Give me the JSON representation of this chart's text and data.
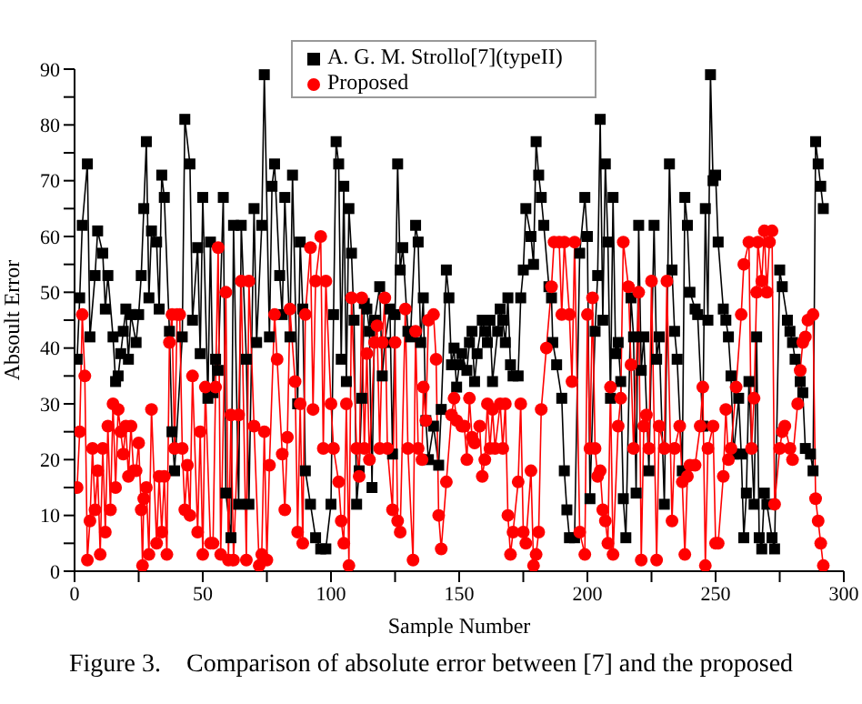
{
  "chart_data": {
    "type": "line",
    "xlabel": "Sample Number",
    "ylabel": "Absoult Error",
    "xlim": [
      0,
      300
    ],
    "xticks": [
      0,
      {
        "value": 25,
        "label": null
      },
      50,
      {
        "value": 75,
        "label": null
      },
      100,
      {
        "value": 125,
        "label": null
      },
      150,
      {
        "value": 175,
        "label": null
      },
      200,
      {
        "value": 225,
        "label": null
      },
      250,
      {
        "value": 275,
        "label": null
      },
      300
    ],
    "ylim": [
      0,
      90
    ],
    "yticks": [
      0,
      {
        "value": 5,
        "label": null
      },
      10,
      {
        "value": 15,
        "label": null
      },
      20,
      {
        "value": 25,
        "label": null
      },
      30,
      {
        "value": 35,
        "label": null
      },
      40,
      {
        "value": 45,
        "label": null
      },
      50,
      {
        "value": 55,
        "label": null
      },
      60,
      {
        "value": 65,
        "label": null
      },
      70,
      {
        "value": 75,
        "label": null
      },
      80,
      {
        "value": 85,
        "label": null
      },
      90
    ],
    "grid": false,
    "legend": "top",
    "annotations": [
      "Figure 3.    Comparison of absolute error between [7] and the proposed"
    ],
    "series": [
      {
        "name": "A. G. M. Strollo[7](typeII)",
        "color": "#000000",
        "marker": "square",
        "x": [
          1,
          2,
          3,
          5,
          6,
          8,
          9,
          11,
          12,
          13,
          15,
          16,
          17,
          18,
          19,
          20,
          21,
          22,
          24,
          25,
          26,
          27,
          28,
          29,
          30,
          32,
          33,
          34,
          35,
          37,
          38,
          39,
          42,
          43,
          45,
          46,
          48,
          49,
          50,
          52,
          53,
          54,
          55,
          56,
          58,
          59,
          61,
          62,
          64,
          65,
          67,
          68,
          70,
          71,
          73,
          74,
          76,
          77,
          78,
          80,
          81,
          82,
          84,
          85,
          87,
          88,
          89,
          90,
          92,
          94,
          96,
          98,
          100,
          101,
          102,
          103,
          104,
          105,
          106,
          107,
          108,
          109,
          110,
          111,
          112,
          113,
          114,
          115,
          116,
          117,
          119,
          120,
          121,
          123,
          124,
          125,
          126,
          127,
          128,
          130,
          131,
          133,
          134,
          135,
          136,
          137,
          138,
          140,
          142,
          143,
          145,
          146,
          147,
          148,
          149,
          150,
          151,
          153,
          154,
          155,
          156,
          157,
          159,
          160,
          161,
          162,
          163,
          165,
          166,
          167,
          168,
          169,
          170,
          171,
          173,
          174,
          175,
          176,
          178,
          179,
          180,
          181,
          182,
          183,
          185,
          186,
          186.5,
          188,
          190,
          191,
          192,
          193,
          195,
          197,
          199,
          200,
          201,
          203,
          204,
          205,
          206,
          207,
          208,
          209,
          210,
          211,
          212,
          213,
          214,
          215,
          217,
          218,
          219,
          220,
          221,
          222,
          224,
          226,
          227,
          228,
          230,
          232,
          233,
          234,
          235,
          237,
          238,
          239,
          240,
          242,
          243,
          245,
          246,
          247,
          248,
          249,
          250,
          251,
          253,
          254,
          255,
          256,
          257,
          259,
          260,
          261,
          262,
          263,
          265,
          266,
          267,
          268,
          269,
          270,
          272,
          273,
          275,
          276,
          278,
          279,
          280,
          281,
          283,
          284,
          285,
          287,
          288,
          289,
          290,
          291,
          292
        ],
        "values": [
          38,
          49,
          62,
          73,
          42,
          53,
          61,
          57,
          47,
          53,
          42,
          34,
          35,
          39,
          43,
          47,
          38,
          46,
          41,
          46,
          53,
          65,
          77,
          49,
          61,
          59,
          47,
          71,
          67,
          43,
          25,
          18,
          42,
          81,
          73,
          45,
          58,
          39,
          67,
          31,
          59,
          32,
          38,
          36,
          67,
          14,
          6,
          62,
          12,
          62,
          38,
          12,
          65,
          41,
          62,
          89,
          42,
          69,
          73,
          53,
          46,
          67,
          42,
          71,
          30,
          59,
          47,
          18,
          12,
          6,
          4,
          4,
          12,
          46,
          77,
          73,
          38,
          69,
          34,
          65,
          57,
          45,
          12,
          18,
          31,
          48,
          47,
          43,
          15,
          45,
          51,
          35,
          41,
          47,
          21,
          46,
          73,
          54,
          58,
          43,
          42,
          62,
          59,
          41,
          49,
          27,
          20,
          26,
          19,
          29,
          54,
          49,
          37,
          40,
          33,
          37,
          39,
          36,
          41,
          43,
          34,
          39,
          45,
          43,
          41,
          45,
          34,
          43,
          47,
          45,
          41,
          49,
          37,
          35,
          35,
          49,
          54,
          65,
          60,
          55,
          77,
          71,
          67,
          62,
          51,
          49,
          41,
          37,
          31,
          18,
          11,
          6,
          6,
          57,
          67,
          60,
          13,
          43,
          53,
          81,
          45,
          73,
          59,
          31,
          67,
          39,
          41,
          34,
          13,
          6,
          49,
          42,
          14,
          62,
          36,
          42,
          18,
          62,
          38,
          42,
          12,
          73,
          54,
          43,
          38,
          18,
          67,
          62,
          50,
          47,
          46,
          26,
          65,
          45,
          89,
          70,
          71,
          59,
          47,
          45,
          42,
          35,
          21,
          31,
          21,
          6,
          14,
          34,
          12,
          42,
          6,
          4,
          14,
          12,
          6,
          4,
          54,
          51,
          45,
          43,
          41,
          38,
          34,
          32,
          22,
          21,
          18,
          77,
          73,
          69,
          65
        ]
      },
      {
        "name": "Proposed",
        "color": "#ff0000",
        "marker": "circle",
        "x": [
          1,
          2,
          3,
          4,
          5,
          6,
          7,
          8,
          9,
          10,
          11,
          12,
          13,
          14,
          15,
          16,
          17,
          18,
          19,
          20,
          21,
          22,
          23,
          24,
          25,
          26,
          26.5,
          27,
          28,
          29,
          30,
          32,
          33,
          34,
          35,
          36,
          37,
          38,
          39,
          40,
          41,
          42,
          43,
          44,
          45,
          46,
          48,
          49,
          50,
          51,
          53,
          54,
          55,
          56,
          57,
          59,
          60,
          61,
          62,
          64,
          65,
          67,
          68,
          70,
          72,
          73,
          74,
          75,
          76,
          78,
          79,
          81,
          82,
          83,
          84,
          86,
          87,
          88,
          89,
          90,
          92,
          93,
          94,
          96,
          97,
          98,
          100,
          101,
          103,
          104,
          105,
          106,
          107,
          108,
          110,
          111,
          112,
          113,
          114,
          115,
          117,
          118,
          119,
          120,
          121,
          122,
          124,
          125,
          126,
          127,
          129,
          130,
          132,
          133,
          134,
          135.5,
          136,
          137,
          138,
          140,
          141,
          142,
          143,
          145,
          147,
          148,
          149,
          151,
          152,
          153,
          154,
          155,
          156,
          158,
          159,
          160,
          161,
          162,
          163,
          164,
          166,
          167,
          168,
          169,
          170,
          171,
          173,
          174,
          175,
          176,
          178,
          179,
          180,
          181,
          182,
          184,
          186,
          187,
          189,
          190,
          191,
          193,
          194,
          195,
          197,
          199,
          200,
          201,
          202,
          203,
          204,
          205,
          206,
          207,
          208,
          209,
          210,
          212,
          213,
          214,
          216,
          217,
          218,
          220,
          221,
          222,
          223,
          224,
          225,
          227,
          228,
          230,
          231,
          233,
          234,
          236,
          237,
          238,
          239,
          240,
          242,
          244,
          245,
          246,
          247,
          249,
          250,
          251,
          253,
          254,
          255,
          256,
          258,
          260,
          261,
          263,
          264,
          265,
          266,
          266.5,
          268,
          269,
          270,
          271,
          272,
          273,
          275,
          276,
          277,
          279,
          280,
          282,
          283,
          284,
          285,
          286,
          288,
          289,
          290,
          291,
          292
        ],
        "values": [
          15,
          25,
          46,
          35,
          2,
          9,
          22,
          11,
          18,
          3,
          22,
          7,
          26,
          11,
          30,
          15,
          29,
          25,
          21,
          26,
          17,
          26,
          18,
          18,
          23,
          11,
          1,
          13,
          15,
          3,
          29,
          5,
          17,
          7,
          17,
          3,
          41,
          46,
          22,
          46,
          46,
          22,
          11,
          19,
          10,
          35,
          7,
          25,
          3,
          33,
          5,
          5,
          33,
          58,
          3,
          50,
          2,
          28,
          2,
          28,
          52,
          2,
          52,
          26,
          1,
          3,
          25,
          2,
          19,
          46,
          38,
          21,
          11,
          24,
          47,
          34,
          7,
          30,
          5,
          46,
          58,
          29,
          52,
          60,
          22,
          52,
          30,
          22,
          16,
          9,
          5,
          30,
          1,
          49,
          22,
          17,
          49,
          22,
          39,
          20,
          41,
          44,
          22,
          41,
          49,
          22,
          11,
          41,
          9,
          7,
          47,
          22,
          2,
          43,
          22,
          20,
          33,
          27,
          45,
          46,
          38,
          10,
          4,
          16,
          28,
          31,
          27,
          26,
          26,
          20,
          31,
          24,
          23,
          26,
          17,
          20,
          30,
          22,
          29,
          22,
          30,
          22,
          30,
          10,
          3,
          7,
          16,
          30,
          7,
          5,
          18,
          1,
          3,
          7,
          29,
          40,
          51,
          59,
          59,
          46,
          59,
          46,
          34,
          59,
          7,
          3,
          46,
          22,
          49,
          22,
          17,
          18,
          11,
          9,
          5,
          33,
          3,
          26,
          31,
          59,
          51,
          37,
          22,
          50,
          2,
          26,
          28,
          22,
          52,
          2,
          26,
          22,
          52,
          9,
          22,
          26,
          16,
          3,
          17,
          19,
          19,
          26,
          33,
          1,
          22,
          26,
          5,
          5,
          17,
          29,
          20,
          22,
          33,
          46,
          55,
          59,
          22,
          31,
          50,
          59,
          52,
          61,
          50,
          59,
          61,
          12,
          22,
          25,
          26,
          22,
          20,
          30,
          36,
          41,
          42,
          45,
          46,
          13,
          9,
          5,
          1
        ]
      }
    ]
  }
}
